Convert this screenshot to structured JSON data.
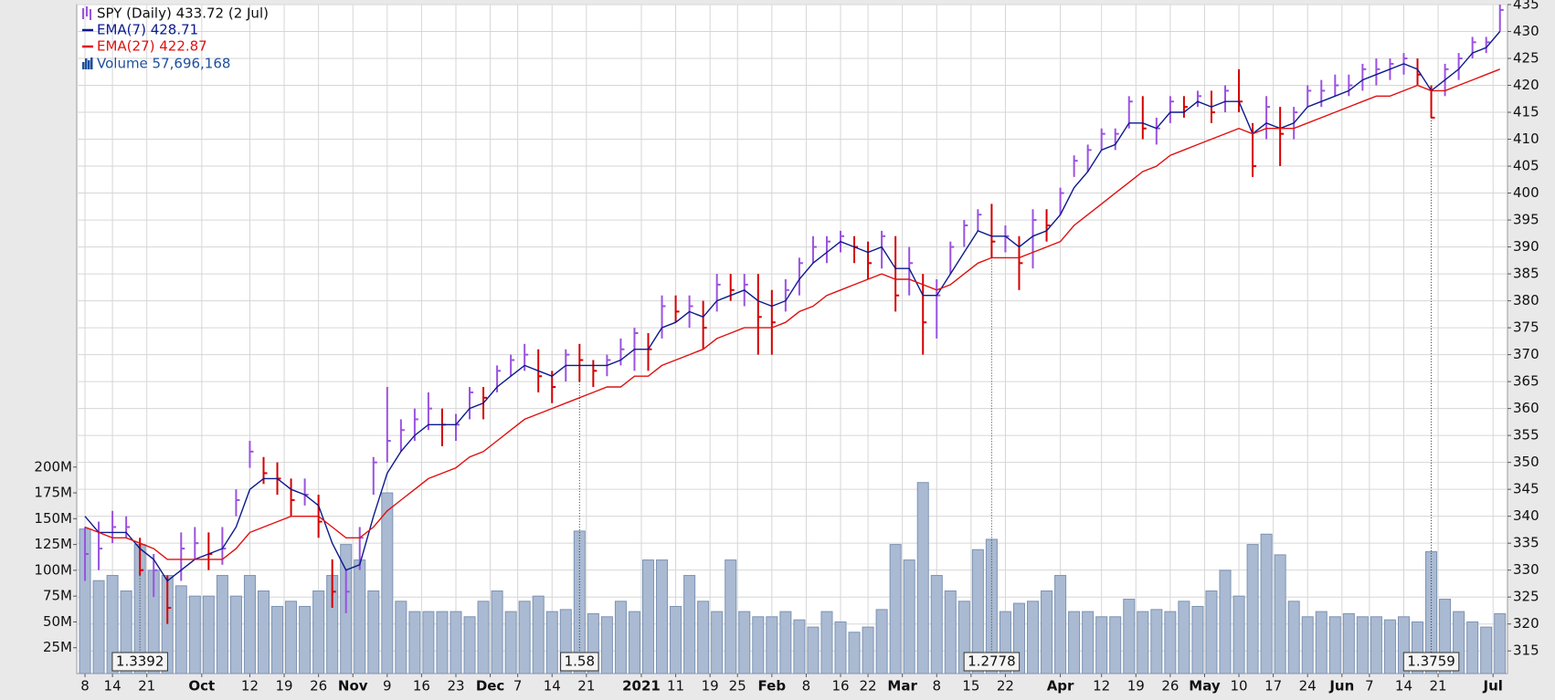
{
  "chart_data": {
    "type": "ohlc",
    "x": [
      0,
      2,
      4,
      6,
      8,
      10,
      12,
      14,
      16,
      18,
      20,
      22,
      24,
      26,
      28,
      30,
      32,
      34,
      36,
      38,
      40,
      42,
      44,
      46,
      48,
      50,
      52,
      54,
      56,
      58,
      60,
      62,
      64,
      66,
      68,
      70,
      72,
      74,
      76,
      78,
      80,
      82,
      84,
      86,
      88,
      90,
      92,
      94,
      96,
      98,
      100,
      102,
      104,
      106,
      108,
      110,
      112,
      114,
      116,
      118,
      120,
      122,
      124,
      126,
      128,
      130,
      132,
      134,
      136,
      138,
      140,
      142,
      144,
      146,
      148,
      150,
      152,
      154,
      156,
      158,
      160,
      162,
      164,
      166,
      168,
      170,
      172,
      174,
      176,
      178,
      180,
      182,
      184,
      186,
      188,
      190,
      192,
      194,
      196,
      198,
      200,
      202,
      204,
      206
    ],
    "price": {
      "name": "SPY (Daily) 433.72 (2 Jul)",
      "up_color": "#9b52e0",
      "down_color": "#d40000",
      "high": [
        338,
        339,
        341,
        340,
        336,
        333,
        329,
        337,
        338,
        337,
        338,
        345,
        354,
        351,
        350,
        347,
        347,
        344,
        332,
        330,
        338,
        351,
        364,
        358,
        360,
        363,
        360,
        359,
        364,
        364,
        368,
        370,
        372,
        371,
        367,
        371,
        372,
        369,
        370,
        373,
        375,
        374,
        381,
        381,
        381,
        380,
        385,
        385,
        385,
        385,
        382,
        384,
        388,
        392,
        392,
        393,
        392,
        391,
        393,
        392,
        390,
        385,
        384,
        391,
        395,
        397,
        398,
        394,
        392,
        397,
        397,
        401,
        407,
        409,
        412,
        412,
        418,
        418,
        414,
        418,
        418,
        419,
        419,
        420,
        423,
        413,
        418,
        416,
        416,
        420,
        421,
        422,
        422,
        424,
        425,
        425,
        426,
        425,
        420,
        424,
        426,
        429,
        429,
        435
      ],
      "low": [
        328,
        330,
        335,
        336,
        329,
        325,
        320,
        328,
        332,
        330,
        331,
        340,
        349,
        346,
        344,
        340,
        342,
        336,
        323,
        322,
        330,
        344,
        350,
        352,
        354,
        356,
        353,
        354,
        358,
        358,
        363,
        366,
        367,
        363,
        361,
        365,
        365,
        364,
        366,
        368,
        367,
        367,
        373,
        376,
        375,
        371,
        378,
        380,
        379,
        370,
        370,
        378,
        381,
        387,
        387,
        389,
        387,
        384,
        386,
        378,
        381,
        370,
        373,
        385,
        390,
        393,
        388,
        389,
        382,
        386,
        391,
        396,
        403,
        404,
        408,
        408,
        412,
        410,
        409,
        413,
        414,
        416,
        413,
        415,
        415,
        403,
        410,
        405,
        410,
        416,
        416,
        418,
        418,
        419,
        420,
        421,
        422,
        420,
        414,
        418,
        421,
        425,
        426,
        430
      ],
      "close": [
        333,
        334,
        338,
        338,
        330,
        330,
        323,
        334,
        335,
        333,
        334,
        343,
        352,
        348,
        347,
        343,
        344,
        339,
        326,
        326,
        336,
        350,
        354,
        356,
        358,
        360,
        357,
        357,
        363,
        362,
        367,
        369,
        370,
        366,
        364,
        370,
        369,
        367,
        369,
        371,
        374,
        371,
        379,
        378,
        379,
        375,
        383,
        382,
        383,
        377,
        376,
        382,
        387,
        390,
        391,
        392,
        390,
        387,
        392,
        381,
        387,
        376,
        381,
        390,
        394,
        396,
        391,
        392,
        387,
        395,
        394,
        400,
        406,
        408,
        411,
        411,
        417,
        412,
        412,
        417,
        416,
        418,
        415,
        419,
        417,
        405,
        416,
        411,
        415,
        419,
        419,
        420,
        420,
        423,
        423,
        424,
        425,
        422,
        414,
        423,
        425,
        428,
        428,
        434
      ]
    },
    "series": [
      {
        "name": "EMA(7) 428.71",
        "color": "#0c1a8c",
        "values": [
          340,
          337,
          337,
          337,
          334,
          332,
          328,
          330,
          332,
          333,
          334,
          338,
          345,
          347,
          347,
          345,
          344,
          342,
          335,
          330,
          331,
          340,
          348,
          352,
          355,
          357,
          357,
          357,
          360,
          361,
          364,
          366,
          368,
          367,
          366,
          368,
          368,
          368,
          368,
          369,
          371,
          371,
          375,
          376,
          378,
          377,
          380,
          381,
          382,
          380,
          379,
          380,
          384,
          387,
          389,
          391,
          390,
          389,
          390,
          386,
          386,
          381,
          381,
          385,
          389,
          393,
          392,
          392,
          390,
          392,
          393,
          396,
          401,
          404,
          408,
          409,
          413,
          413,
          412,
          415,
          415,
          417,
          416,
          417,
          417,
          411,
          413,
          412,
          413,
          416,
          417,
          418,
          419,
          421,
          422,
          423,
          424,
          423,
          419,
          421,
          423,
          426,
          427,
          430
        ]
      },
      {
        "name": "EMA(27) 422.87",
        "color": "#e01010",
        "values": [
          338,
          337,
          336,
          336,
          335,
          334,
          332,
          332,
          332,
          332,
          332,
          334,
          337,
          338,
          339,
          340,
          340,
          340,
          338,
          336,
          336,
          338,
          341,
          343,
          345,
          347,
          348,
          349,
          351,
          352,
          354,
          356,
          358,
          359,
          360,
          361,
          362,
          363,
          364,
          364,
          366,
          366,
          368,
          369,
          370,
          371,
          373,
          374,
          375,
          375,
          375,
          376,
          378,
          379,
          381,
          382,
          383,
          384,
          385,
          384,
          384,
          383,
          382,
          383,
          385,
          387,
          388,
          388,
          388,
          389,
          390,
          391,
          394,
          396,
          398,
          400,
          402,
          404,
          405,
          407,
          408,
          409,
          410,
          411,
          412,
          411,
          412,
          412,
          412,
          413,
          414,
          415,
          416,
          417,
          418,
          418,
          419,
          420,
          419,
          419,
          420,
          421,
          422,
          423
        ]
      }
    ],
    "volume": {
      "name": "Volume 57,696,168",
      "color": "#a9bad2",
      "axis": "y2",
      "values": [
        140,
        90,
        95,
        80,
        125,
        100,
        95,
        85,
        75,
        75,
        95,
        75,
        95,
        80,
        65,
        70,
        65,
        80,
        95,
        125,
        110,
        80,
        175,
        70,
        60,
        60,
        60,
        60,
        55,
        70,
        80,
        60,
        70,
        75,
        60,
        62,
        138,
        58,
        55,
        70,
        60,
        110,
        110,
        65,
        95,
        70,
        60,
        110,
        60,
        55,
        55,
        60,
        52,
        45,
        60,
        50,
        40,
        45,
        62,
        125,
        110,
        185,
        95,
        80,
        70,
        120,
        130,
        60,
        68,
        70,
        80,
        95,
        60,
        60,
        55,
        55,
        72,
        60,
        62,
        60,
        70,
        65,
        80,
        100,
        75,
        125,
        135,
        115,
        70,
        55,
        60,
        55,
        58,
        55,
        55,
        52,
        55,
        50,
        118,
        72,
        60,
        50,
        45,
        58
      ]
    },
    "xlim": [
      -1.2,
      207.1
    ],
    "xticks": [
      {
        "value": 0,
        "label": "8"
      },
      {
        "value": 4,
        "label": "14"
      },
      {
        "value": 9,
        "label": "21"
      },
      {
        "value": 17,
        "label": "Oct",
        "bold": true
      },
      {
        "value": 24,
        "label": "12"
      },
      {
        "value": 29,
        "label": "19"
      },
      {
        "value": 34,
        "label": "26"
      },
      {
        "value": 39,
        "label": "Nov",
        "bold": true
      },
      {
        "value": 44,
        "label": "9"
      },
      {
        "value": 49,
        "label": "16"
      },
      {
        "value": 54,
        "label": "23"
      },
      {
        "value": 59,
        "label": "Dec",
        "bold": true
      },
      {
        "value": 63,
        "label": "7"
      },
      {
        "value": 68,
        "label": "14"
      },
      {
        "value": 73,
        "label": "21"
      },
      {
        "value": 81,
        "label": "2021",
        "bold": true
      },
      {
        "value": 86,
        "label": "11"
      },
      {
        "value": 91,
        "label": "19"
      },
      {
        "value": 95,
        "label": "25"
      },
      {
        "value": 100,
        "label": "Feb",
        "bold": true
      },
      {
        "value": 105,
        "label": "8"
      },
      {
        "value": 110,
        "label": "16"
      },
      {
        "value": 114,
        "label": "22"
      },
      {
        "value": 119,
        "label": "Mar",
        "bold": true
      },
      {
        "value": 124,
        "label": "8"
      },
      {
        "value": 129,
        "label": "15"
      },
      {
        "value": 134,
        "label": "22"
      },
      {
        "value": 142,
        "label": "Apr",
        "bold": true
      },
      {
        "value": 148,
        "label": "12"
      },
      {
        "value": 153,
        "label": "19"
      },
      {
        "value": 158,
        "label": "26"
      },
      {
        "value": 163,
        "label": "May",
        "bold": true
      },
      {
        "value": 168,
        "label": "10"
      },
      {
        "value": 173,
        "label": "17"
      },
      {
        "value": 178,
        "label": "24"
      },
      {
        "value": 183,
        "label": "Jun",
        "bold": true
      },
      {
        "value": 187,
        "label": "7"
      },
      {
        "value": 192,
        "label": "14"
      },
      {
        "value": 197,
        "label": "21"
      },
      {
        "value": 205,
        "label": "Jul",
        "bold": true
      }
    ],
    "ylim": [
      310.8,
      435
    ],
    "yticks": [
      315,
      320,
      325,
      330,
      335,
      340,
      345,
      350,
      355,
      360,
      365,
      370,
      375,
      380,
      385,
      390,
      395,
      400,
      405,
      410,
      415,
      420,
      425,
      430,
      435
    ],
    "y2lim": [
      0,
      648
    ],
    "y2ticks": [
      {
        "value": 25,
        "label": "25M"
      },
      {
        "value": 50,
        "label": "50M"
      },
      {
        "value": 75,
        "label": "75M"
      },
      {
        "value": 100,
        "label": "100M"
      },
      {
        "value": 125,
        "label": "125M"
      },
      {
        "value": 150,
        "label": "150M"
      },
      {
        "value": 175,
        "label": "175M"
      },
      {
        "value": 200,
        "label": "200M"
      }
    ],
    "annotations": [
      {
        "x": 8,
        "label": "1.3392"
      },
      {
        "x": 72,
        "label": "1.58"
      },
      {
        "x": 132,
        "label": "1.2778"
      },
      {
        "x": 196,
        "label": "1.3759"
      }
    ],
    "grid": true
  }
}
